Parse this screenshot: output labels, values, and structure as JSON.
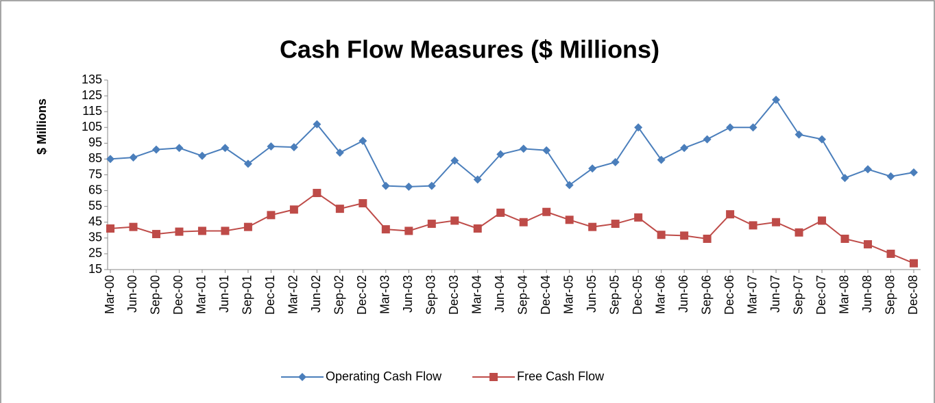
{
  "chart_data": {
    "type": "line",
    "title": "Cash Flow Measures ($ Millions)",
    "y_label": "$ Millions",
    "categories": [
      "Mar-00",
      "Jun-00",
      "Sep-00",
      "Dec-00",
      "Mar-01",
      "Jun-01",
      "Sep-01",
      "Dec-01",
      "Mar-02",
      "Jun-02",
      "Sep-02",
      "Dec-02",
      "Mar-03",
      "Jun-03",
      "Sep-03",
      "Dec-03",
      "Mar-04",
      "Jun-04",
      "Sep-04",
      "Dec-04",
      "Mar-05",
      "Jun-05",
      "Sep-05",
      "Dec-05",
      "Mar-06",
      "Jun-06",
      "Sep-06",
      "Dec-06",
      "Mar-07",
      "Jun-07",
      "Sep-07",
      "Dec-07",
      "Mar-08",
      "Jun-08",
      "Sep-08",
      "Dec-08"
    ],
    "series": [
      {
        "name": "Operating Cash Flow",
        "color": "#4a7ebb",
        "marker": "diamond",
        "values": [
          85,
          86,
          91,
          92,
          87,
          92,
          82,
          93,
          92.5,
          107,
          89,
          96.5,
          68,
          67.5,
          68,
          84,
          72,
          88,
          91.5,
          90.5,
          68.5,
          79,
          83,
          105,
          84.5,
          92,
          97.5,
          105,
          105,
          122.5,
          100.5,
          97.5,
          73,
          78.5,
          74,
          76.5
        ]
      },
      {
        "name": "Free Cash Flow",
        "color": "#be4b48",
        "marker": "square",
        "values": [
          41,
          42,
          37.5,
          39,
          39.5,
          39.5,
          42,
          49.5,
          53,
          63.5,
          53.5,
          57,
          40.5,
          39.5,
          44,
          46,
          41,
          51,
          45,
          51.5,
          46.5,
          42,
          44,
          48,
          37,
          36.5,
          34.5,
          50,
          43,
          45,
          38.5,
          46,
          34.5,
          31,
          25,
          19
        ]
      }
    ],
    "ylim": [
      15,
      135
    ],
    "yticks": [
      15,
      25,
      35,
      45,
      55,
      65,
      75,
      85,
      95,
      105,
      115,
      125,
      135
    ],
    "legend": "bottom"
  }
}
